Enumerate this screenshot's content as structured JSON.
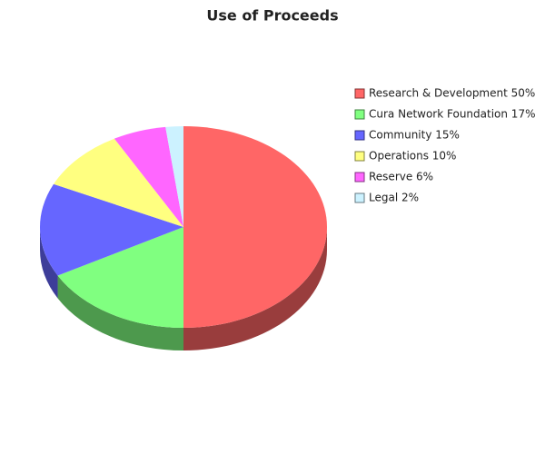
{
  "chart_data": {
    "type": "pie3d",
    "title": "Use of Proceeds",
    "categories": [
      "Research & Development 50%",
      "Cura Network Foundation 17%",
      "Community 15%",
      "Operations 10%",
      "Reserve 6%",
      "Legal 2%"
    ],
    "values": [
      50,
      17,
      15,
      10,
      6,
      2
    ],
    "colors": [
      "#ff6666",
      "#80ff80",
      "#6666ff",
      "#ffff80",
      "#ff66ff",
      "#ccf2ff"
    ],
    "legend": "right"
  }
}
